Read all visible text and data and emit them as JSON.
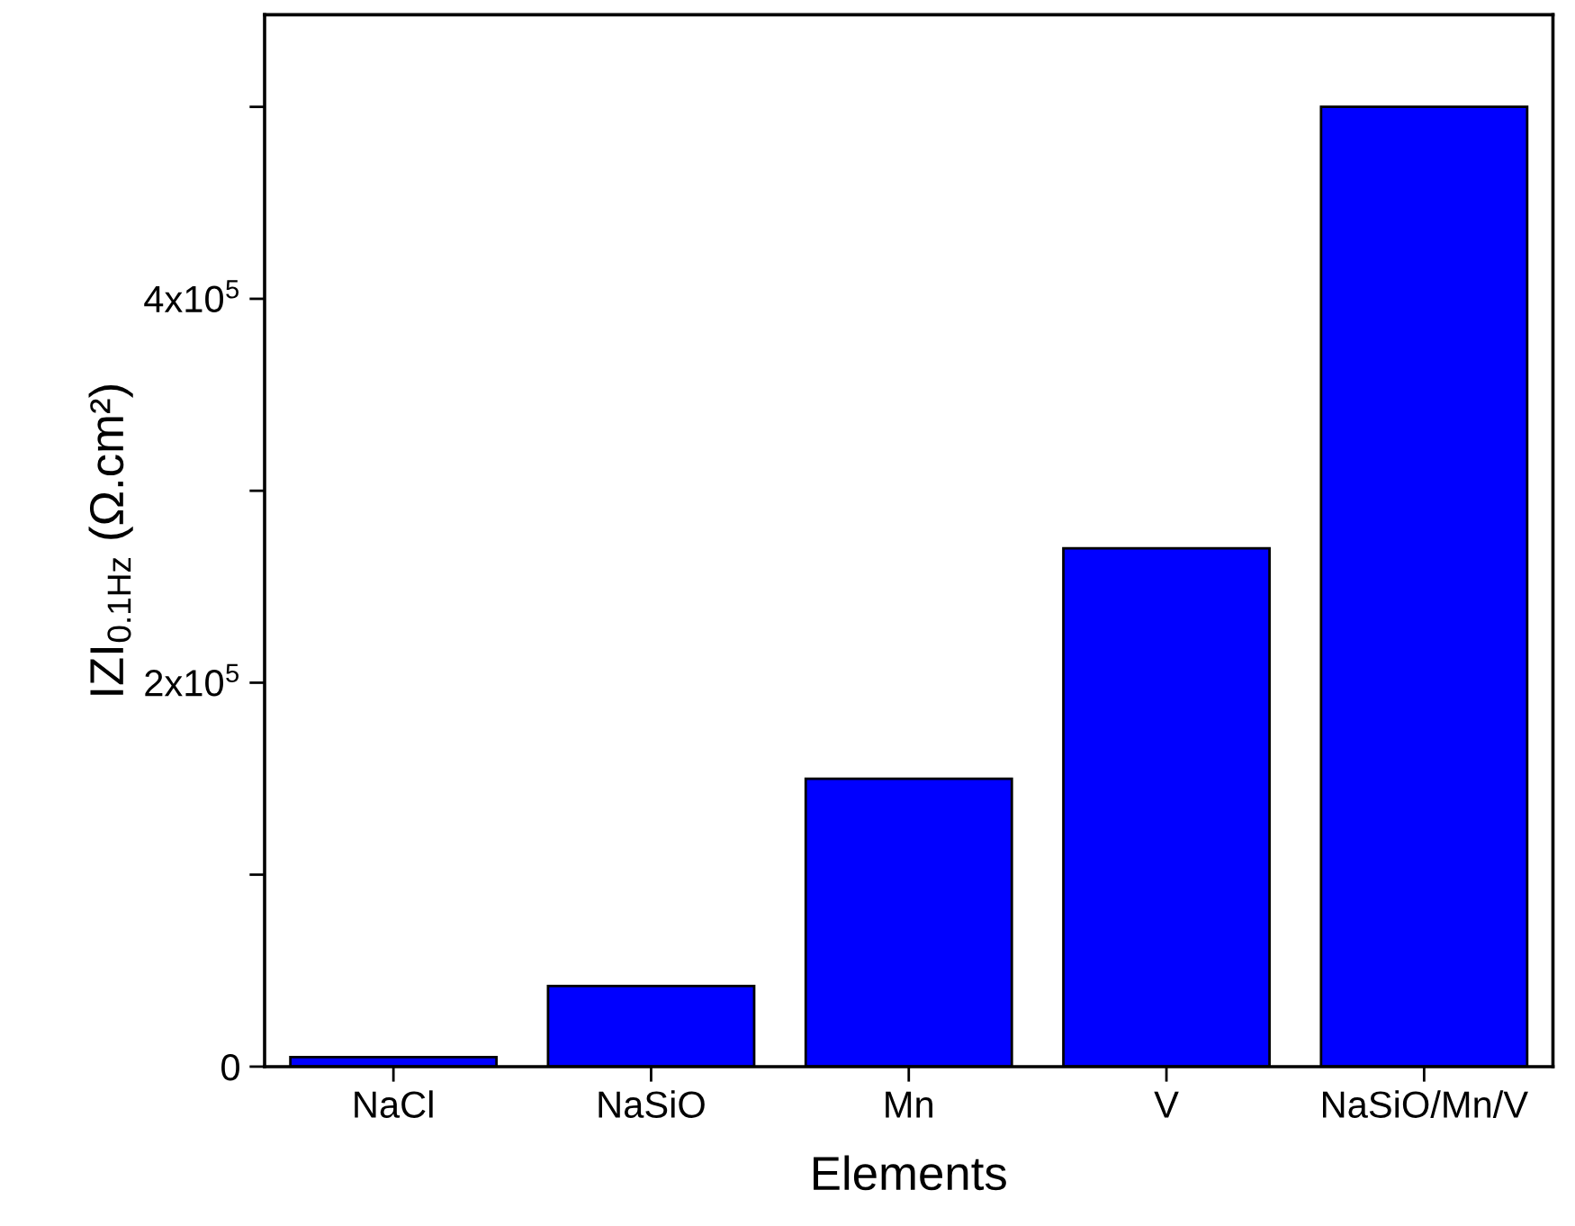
{
  "chart_data": {
    "type": "bar",
    "xlabel": "Elements",
    "ylabel": "IZI$_{0.1Hz}$ (Ω.cm²)",
    "categories": [
      "NaCl",
      "NaSiO",
      "Mn",
      "V",
      "NaSiO/Mn/V"
    ],
    "values": [
      5000,
      42000,
      150000,
      270000,
      500000
    ],
    "color": "#0000ff",
    "ylim": [
      0,
      548000
    ],
    "yticks": [
      0,
      {
        "value": 100000,
        "label": null
      },
      {
        "value": 200000,
        "label": "2x10$^{5}$"
      },
      {
        "value": 300000,
        "label": null
      },
      {
        "value": 400000,
        "label": "4x10$^{5}$"
      },
      {
        "value": 500000,
        "label": null
      }
    ],
    "grid": false
  }
}
